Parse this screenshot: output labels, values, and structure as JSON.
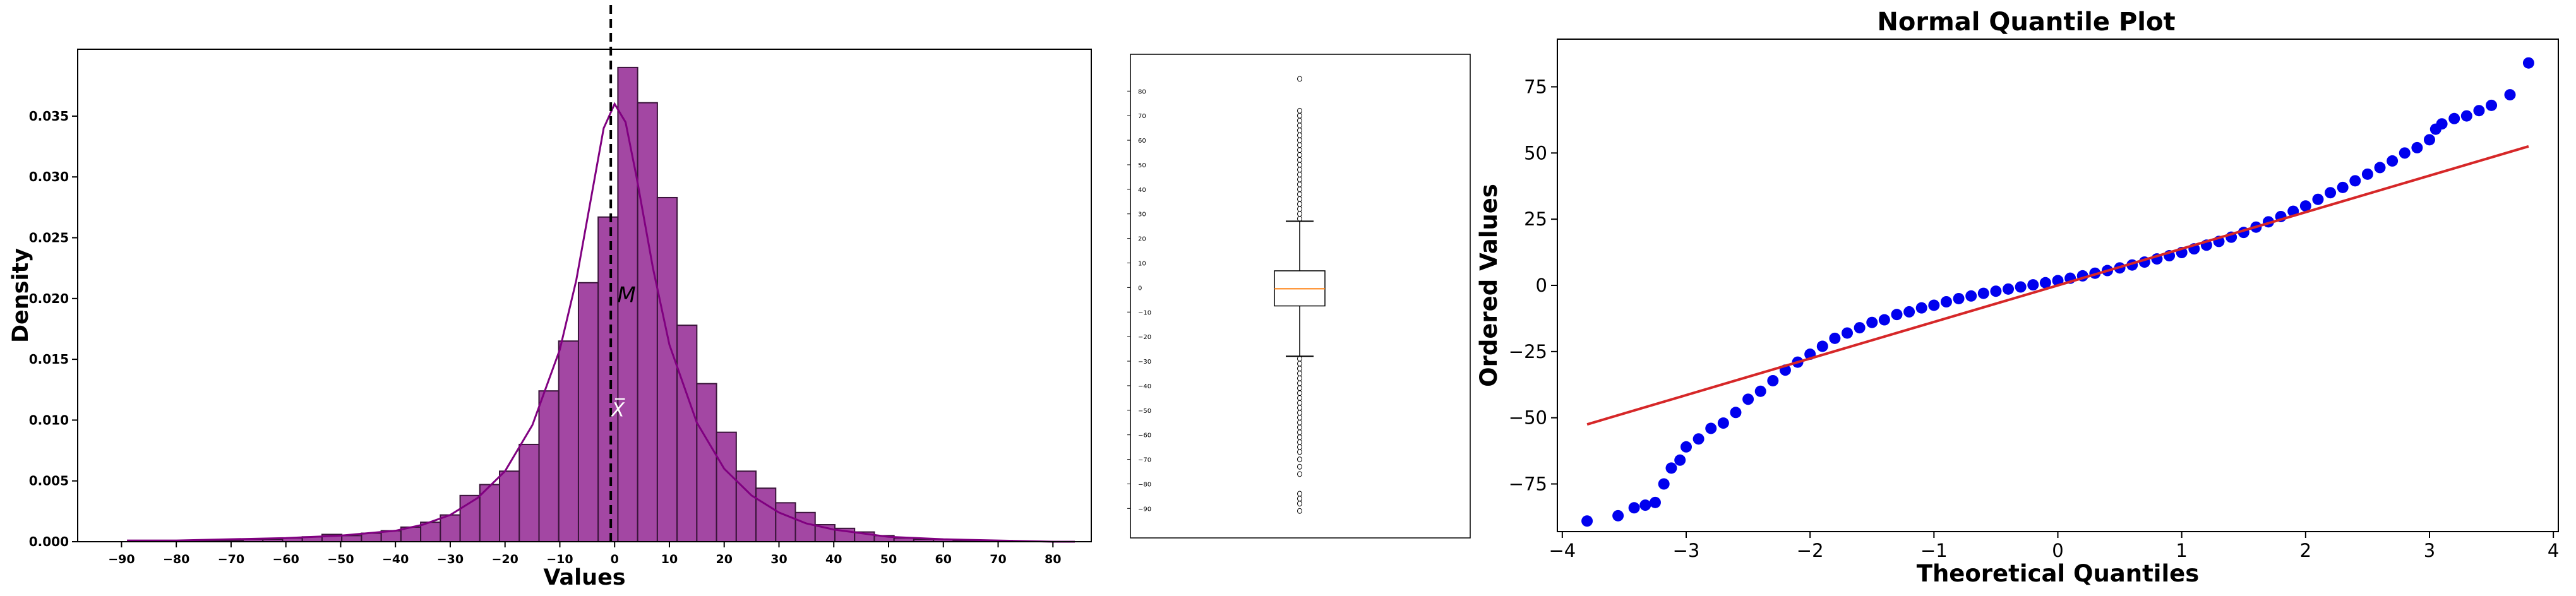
{
  "chart_data": [
    {
      "type": "bar",
      "title": "",
      "xlabel": "Values",
      "ylabel": "Density",
      "xlim": [
        -98,
        87
      ],
      "ylim": [
        0,
        0.0405
      ],
      "xticks": [
        -90,
        -80,
        -70,
        -60,
        -50,
        -40,
        -30,
        -20,
        -10,
        0,
        10,
        20,
        30,
        40,
        50,
        60,
        70,
        80
      ],
      "yticks": [
        0.0,
        0.005,
        0.01,
        0.015,
        0.02,
        0.025,
        0.03,
        0.035
      ],
      "ytick_labels": [
        "0.000",
        "0.005",
        "0.010",
        "0.015",
        "0.020",
        "0.025",
        "0.030",
        "0.035"
      ],
      "bin_edges": [
        -89.4,
        -85.8,
        -82.2,
        -78.6,
        -75,
        -71.4,
        -67.8,
        -64.2,
        -60.6,
        -57,
        -53.4,
        -49.8,
        -46.2,
        -42.6,
        -39,
        -35.4,
        -31.8,
        -28.2,
        -24.6,
        -21,
        -17.4,
        -13.8,
        -10.2,
        -6.6,
        -3,
        0.6,
        4.2,
        7.8,
        11.4,
        15,
        18.6,
        22.2,
        25.8,
        29.4,
        33,
        36.6,
        40.2,
        43.8,
        47.4,
        51,
        54.6,
        58.2,
        61.8,
        65.4,
        69,
        72.6,
        76.2,
        79.8,
        83.4
      ],
      "density": [
        0.0,
        0.0,
        0.0001,
        0.0001,
        0.0001,
        0.0001,
        0.0002,
        0.0002,
        0.0003,
        0.0004,
        0.0006,
        0.0005,
        0.0007,
        0.0009,
        0.0012,
        0.0016,
        0.0022,
        0.0038,
        0.0047,
        0.0058,
        0.008,
        0.0124,
        0.0165,
        0.0213,
        0.0267,
        0.039,
        0.0361,
        0.0283,
        0.0178,
        0.013,
        0.009,
        0.0058,
        0.0044,
        0.0032,
        0.0024,
        0.0014,
        0.0011,
        0.0008,
        0.0005,
        0.0003,
        0.0002,
        0.0002,
        0.0001,
        0.0001,
        0.0001,
        0.0,
        0.0,
        0.0
      ],
      "kde": {
        "x": [
          -89,
          -80,
          -70,
          -60,
          -50,
          -40,
          -35,
          -30,
          -25,
          -20,
          -15,
          -10,
          -7,
          -4,
          -2,
          0,
          2,
          4,
          7,
          10,
          15,
          20,
          25,
          30,
          35,
          40,
          50,
          60,
          70,
          80,
          84
        ],
        "y": [
          0.0001,
          0.0001,
          0.0002,
          0.0003,
          0.0005,
          0.0009,
          0.0014,
          0.0022,
          0.0036,
          0.0058,
          0.0096,
          0.0158,
          0.0215,
          0.029,
          0.034,
          0.036,
          0.0345,
          0.03,
          0.0225,
          0.0162,
          0.0098,
          0.006,
          0.0038,
          0.0024,
          0.0015,
          0.001,
          0.0004,
          0.0002,
          0.0001,
          0.0,
          0.0
        ]
      },
      "median_line_x": -0.7,
      "annotations": [
        {
          "text": "M",
          "x": 0.5,
          "y": 0.0197
        },
        {
          "text": "X̅",
          "x": 0.0,
          "y": 0.0103
        }
      ],
      "bar_color": "#993399",
      "edge_color": "#3a143a",
      "kde_color": "#800080"
    },
    {
      "type": "boxplot",
      "ylim": [
        -102,
        95
      ],
      "yticks": [
        -90,
        -80,
        -70,
        -60,
        -50,
        -40,
        -30,
        -20,
        -10,
        0,
        10,
        20,
        30,
        40,
        50,
        60,
        70,
        80
      ],
      "q1": -7.5,
      "median": -0.5,
      "q3": 6.8,
      "whisker_low": -28,
      "whisker_high": 27,
      "fliers_high": [
        28,
        30,
        32,
        34,
        36,
        38,
        40,
        42,
        44,
        46,
        48,
        50,
        52,
        54,
        56,
        58,
        60,
        62,
        64,
        66,
        68,
        70,
        72,
        85
      ],
      "fliers_low": [
        -29,
        -31,
        -33,
        -35,
        -37,
        -39,
        -41,
        -43,
        -45,
        -47,
        -49,
        -51,
        -53,
        -55,
        -57,
        -59,
        -61,
        -63,
        -65,
        -67,
        -70,
        -73,
        -76,
        -84,
        -86,
        -88,
        -91
      ],
      "median_color": "#ff7f0e"
    },
    {
      "type": "scatter",
      "title": "Normal Quantile Plot",
      "xlabel": "Theoretical Quantiles",
      "ylabel": "Ordered Values",
      "xlim": [
        -4.04,
        4.04
      ],
      "ylim": [
        -93,
        93
      ],
      "xticks": [
        -4,
        -3,
        -2,
        -1,
        0,
        1,
        2,
        3,
        4
      ],
      "xtick_labels": [
        "−4",
        "−3",
        "−2",
        "−1",
        "0",
        "1",
        "2",
        "3",
        "4"
      ],
      "yticks": [
        -75,
        -50,
        -25,
        0,
        25,
        50,
        75
      ],
      "ytick_labels": [
        "−75",
        "−50",
        "−25",
        "0",
        "25",
        "50",
        "75"
      ],
      "points": {
        "x": [
          -3.8,
          -3.55,
          -3.42,
          -3.33,
          -3.25,
          -3.18,
          -3.12,
          -3.05,
          -3.0,
          -2.9,
          -2.8,
          -2.7,
          -2.6,
          -2.5,
          -2.4,
          -2.3,
          -2.2,
          -2.1,
          -2.0,
          -1.9,
          -1.8,
          -1.7,
          -1.6,
          -1.5,
          -1.4,
          -1.3,
          -1.2,
          -1.1,
          -1.0,
          -0.9,
          -0.8,
          -0.7,
          -0.6,
          -0.5,
          -0.4,
          -0.3,
          -0.2,
          -0.1,
          0.0,
          0.1,
          0.2,
          0.3,
          0.4,
          0.5,
          0.6,
          0.7,
          0.8,
          0.9,
          1.0,
          1.1,
          1.2,
          1.3,
          1.4,
          1.5,
          1.6,
          1.7,
          1.8,
          1.9,
          2.0,
          2.1,
          2.2,
          2.3,
          2.4,
          2.5,
          2.6,
          2.7,
          2.8,
          2.9,
          3.0,
          3.05,
          3.1,
          3.2,
          3.3,
          3.4,
          3.5,
          3.65,
          3.8
        ],
        "y": [
          -89,
          -87,
          -84,
          -83,
          -82,
          -75,
          -69,
          -66,
          -61,
          -58,
          -54,
          -52,
          -48,
          -43,
          -40,
          -36,
          -32,
          -29,
          -26,
          -23,
          -20,
          -18,
          -16,
          -14,
          -13,
          -11,
          -10,
          -8.5,
          -7.5,
          -6.2,
          -5,
          -4,
          -3,
          -2.2,
          -1.4,
          -0.6,
          0.2,
          1,
          1.8,
          2.7,
          3.6,
          4.6,
          5.6,
          6.6,
          7.7,
          8.8,
          10,
          11.2,
          12.4,
          13.8,
          15.2,
          16.6,
          18.2,
          20,
          22,
          24,
          26,
          28,
          30,
          32.5,
          35,
          37,
          39.5,
          42,
          44.5,
          47,
          50,
          52,
          55,
          59,
          61,
          63,
          64,
          66,
          68,
          72,
          84
        ]
      },
      "fit_line": {
        "x": [
          -3.8,
          3.8
        ],
        "y": [
          -52.5,
          52.5
        ]
      },
      "point_color": "#0000ee",
      "line_color": "#d62728"
    }
  ]
}
